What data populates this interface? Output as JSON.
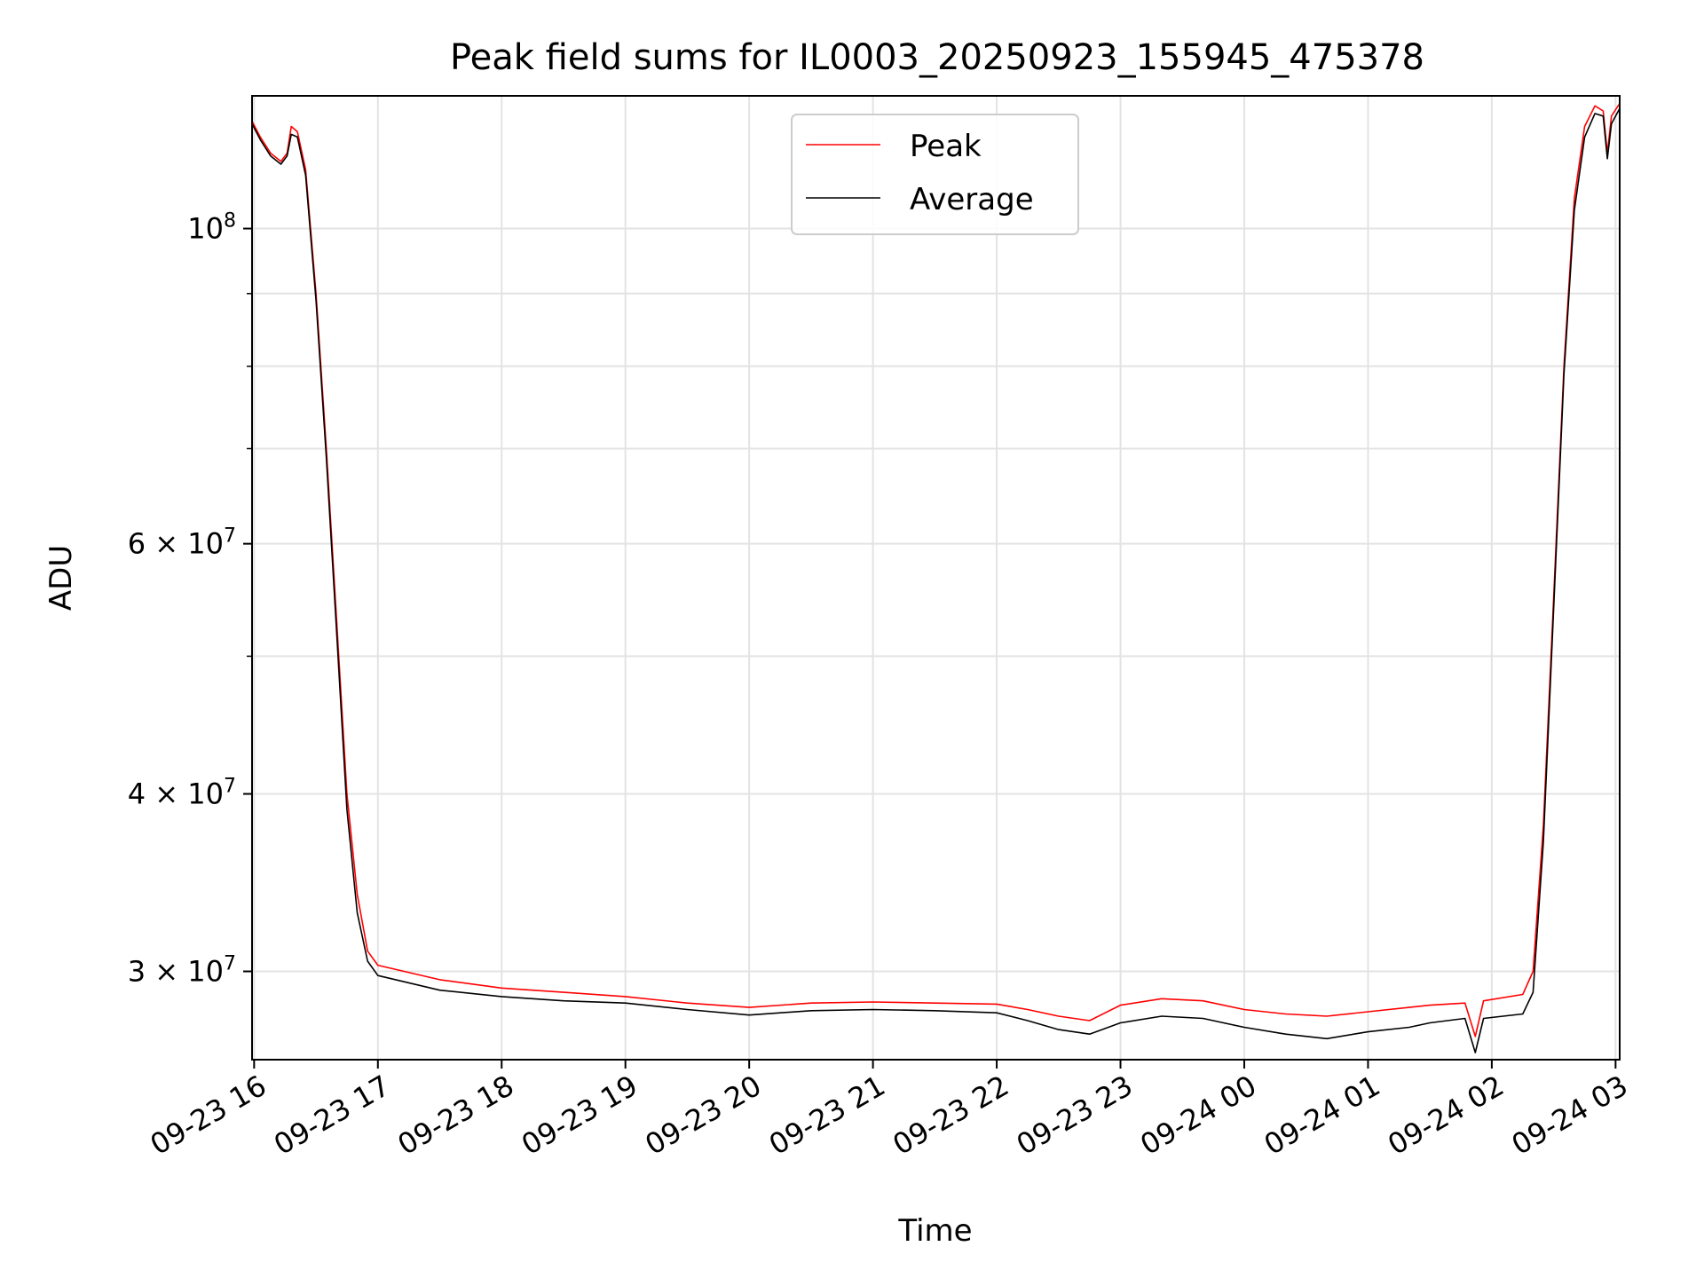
{
  "chart_data": {
    "type": "line",
    "title": "Peak field sums for IL0003_20250923_155945_475378",
    "xlabel": "Time",
    "ylabel": "ADU",
    "y_scale": "log",
    "ylim": [
      26000000,
      124000000
    ],
    "xlim": [
      "2025-09-23 15:59",
      "2025-09-24 03:02"
    ],
    "grid": true,
    "legend_position": "upper center",
    "x_ticks": [
      "09-23 16",
      "09-23 17",
      "09-23 18",
      "09-23 19",
      "09-23 20",
      "09-23 21",
      "09-23 22",
      "09-23 23",
      "09-24 00",
      "09-24 01",
      "09-24 02",
      "09-24 03"
    ],
    "y_tick_labels": [
      {
        "value": 100000000,
        "mantissa": "",
        "base": "10",
        "exp": "8"
      },
      {
        "value": 60000000,
        "mantissa": "6 × ",
        "base": "10",
        "exp": "7"
      },
      {
        "value": 40000000,
        "mantissa": "4 × ",
        "base": "10",
        "exp": "7"
      },
      {
        "value": 30000000,
        "mantissa": "3 × ",
        "base": "10",
        "exp": "7"
      }
    ],
    "y_minor_ticks": [
      50000000,
      70000000,
      80000000,
      90000000
    ],
    "series": [
      {
        "name": "Peak",
        "color": "#ff0000",
        "points": [
          [
            "2025-09-23 15:59",
            119000000
          ],
          [
            "2025-09-23 16:03",
            116000000
          ],
          [
            "2025-09-23 16:08",
            113000000
          ],
          [
            "2025-09-23 16:13",
            111500000
          ],
          [
            "2025-09-23 16:16",
            113000000
          ],
          [
            "2025-09-23 16:18",
            118000000
          ],
          [
            "2025-09-23 16:21",
            117000000
          ],
          [
            "2025-09-23 16:25",
            110000000
          ],
          [
            "2025-09-23 16:30",
            90000000
          ],
          [
            "2025-09-23 16:35",
            70000000
          ],
          [
            "2025-09-23 16:40",
            53000000
          ],
          [
            "2025-09-23 16:45",
            40000000
          ],
          [
            "2025-09-23 16:50",
            34000000
          ],
          [
            "2025-09-23 16:55",
            31000000
          ],
          [
            "2025-09-23 17:00",
            30300000
          ],
          [
            "2025-09-23 17:30",
            29600000
          ],
          [
            "2025-09-23 18:00",
            29200000
          ],
          [
            "2025-09-23 18:30",
            29000000
          ],
          [
            "2025-09-23 19:00",
            28800000
          ],
          [
            "2025-09-23 19:30",
            28500000
          ],
          [
            "2025-09-23 20:00",
            28300000
          ],
          [
            "2025-09-23 20:30",
            28500000
          ],
          [
            "2025-09-23 21:00",
            28550000
          ],
          [
            "2025-09-23 21:30",
            28500000
          ],
          [
            "2025-09-23 22:00",
            28450000
          ],
          [
            "2025-09-23 22:15",
            28200000
          ],
          [
            "2025-09-23 22:30",
            27900000
          ],
          [
            "2025-09-23 22:45",
            27700000
          ],
          [
            "2025-09-23 23:00",
            28400000
          ],
          [
            "2025-09-23 23:20",
            28700000
          ],
          [
            "2025-09-23 23:40",
            28600000
          ],
          [
            "2025-09-24 00:00",
            28200000
          ],
          [
            "2025-09-24 00:20",
            28000000
          ],
          [
            "2025-09-24 00:40",
            27900000
          ],
          [
            "2025-09-24 01:00",
            28100000
          ],
          [
            "2025-09-24 01:20",
            28300000
          ],
          [
            "2025-09-24 01:30",
            28400000
          ],
          [
            "2025-09-24 01:47",
            28500000
          ],
          [
            "2025-09-24 01:52",
            27000000
          ],
          [
            "2025-09-24 01:56",
            28600000
          ],
          [
            "2025-09-24 02:15",
            28900000
          ],
          [
            "2025-09-24 02:20",
            30000000
          ],
          [
            "2025-09-24 02:25",
            38000000
          ],
          [
            "2025-09-24 02:30",
            55000000
          ],
          [
            "2025-09-24 02:35",
            80000000
          ],
          [
            "2025-09-24 02:40",
            105000000
          ],
          [
            "2025-09-24 02:45",
            118000000
          ],
          [
            "2025-09-24 02:50",
            122000000
          ],
          [
            "2025-09-24 02:54",
            121000000
          ],
          [
            "2025-09-24 02:56",
            113000000
          ],
          [
            "2025-09-24 02:58",
            120000000
          ],
          [
            "2025-09-24 03:02",
            122500000
          ]
        ]
      },
      {
        "name": "Average",
        "color": "#000000",
        "points": [
          [
            "2025-09-23 15:59",
            118500000
          ],
          [
            "2025-09-23 16:03",
            115500000
          ],
          [
            "2025-09-23 16:08",
            112500000
          ],
          [
            "2025-09-23 16:13",
            111000000
          ],
          [
            "2025-09-23 16:16",
            112500000
          ],
          [
            "2025-09-23 16:18",
            116500000
          ],
          [
            "2025-09-23 16:21",
            116000000
          ],
          [
            "2025-09-23 16:25",
            109000000
          ],
          [
            "2025-09-23 16:30",
            89000000
          ],
          [
            "2025-09-23 16:35",
            69000000
          ],
          [
            "2025-09-23 16:40",
            52000000
          ],
          [
            "2025-09-23 16:45",
            39000000
          ],
          [
            "2025-09-23 16:50",
            33000000
          ],
          [
            "2025-09-23 16:55",
            30500000
          ],
          [
            "2025-09-23 17:00",
            29800000
          ],
          [
            "2025-09-23 17:30",
            29100000
          ],
          [
            "2025-09-23 18:00",
            28800000
          ],
          [
            "2025-09-23 18:30",
            28600000
          ],
          [
            "2025-09-23 19:00",
            28500000
          ],
          [
            "2025-09-23 19:30",
            28200000
          ],
          [
            "2025-09-23 20:00",
            27950000
          ],
          [
            "2025-09-23 20:30",
            28150000
          ],
          [
            "2025-09-23 21:00",
            28200000
          ],
          [
            "2025-09-23 21:30",
            28150000
          ],
          [
            "2025-09-23 22:00",
            28050000
          ],
          [
            "2025-09-23 22:15",
            27700000
          ],
          [
            "2025-09-23 22:30",
            27300000
          ],
          [
            "2025-09-23 22:45",
            27100000
          ],
          [
            "2025-09-23 23:00",
            27600000
          ],
          [
            "2025-09-23 23:20",
            27900000
          ],
          [
            "2025-09-23 23:40",
            27800000
          ],
          [
            "2025-09-24 00:00",
            27400000
          ],
          [
            "2025-09-24 00:20",
            27100000
          ],
          [
            "2025-09-24 00:40",
            26900000
          ],
          [
            "2025-09-24 01:00",
            27200000
          ],
          [
            "2025-09-24 01:20",
            27400000
          ],
          [
            "2025-09-24 01:30",
            27600000
          ],
          [
            "2025-09-24 01:47",
            27800000
          ],
          [
            "2025-09-24 01:52",
            26300000
          ],
          [
            "2025-09-24 01:56",
            27800000
          ],
          [
            "2025-09-24 02:15",
            28000000
          ],
          [
            "2025-09-24 02:20",
            29000000
          ],
          [
            "2025-09-24 02:25",
            37000000
          ],
          [
            "2025-09-24 02:30",
            54000000
          ],
          [
            "2025-09-24 02:35",
            79000000
          ],
          [
            "2025-09-24 02:40",
            103000000
          ],
          [
            "2025-09-24 02:45",
            116000000
          ],
          [
            "2025-09-24 02:50",
            120500000
          ],
          [
            "2025-09-24 02:54",
            120000000
          ],
          [
            "2025-09-24 02:56",
            112000000
          ],
          [
            "2025-09-24 02:58",
            118500000
          ],
          [
            "2025-09-24 03:02",
            121500000
          ]
        ]
      }
    ]
  }
}
